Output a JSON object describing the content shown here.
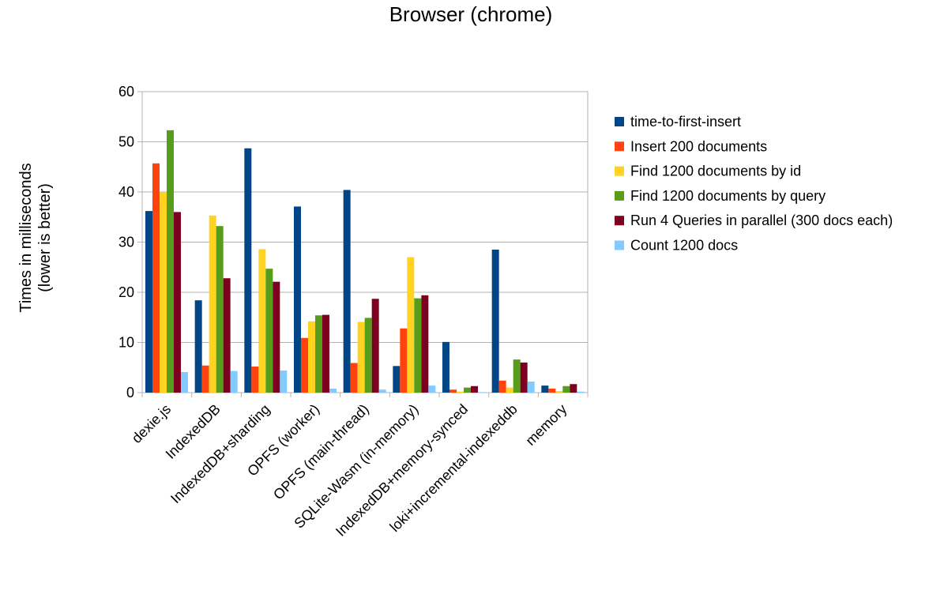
{
  "chart_data": {
    "type": "bar",
    "title": "Browser (chrome)",
    "xlabel": "",
    "ylabel": [
      "Times in milliseconds",
      "(lower is better)"
    ],
    "ylim": [
      0,
      60
    ],
    "yticks": [
      0,
      10,
      20,
      30,
      40,
      50,
      60
    ],
    "grid": true,
    "legend_position": "right",
    "categories": [
      "dexie.js",
      "IndexedDB",
      "IndexedDB+sharding",
      "OPFS (worker)",
      "OPFS (main-thread)",
      "SQLite-Wasm (in-memory)",
      "IndexedDB+memory-synced",
      "loki+incremental-indexeddb",
      "memory"
    ],
    "series": [
      {
        "name": "time-to-first-insert",
        "color": "#004586",
        "values": [
          36.2,
          18.4,
          48.7,
          37.1,
          40.4,
          5.3,
          10.1,
          28.5,
          1.4
        ]
      },
      {
        "name": "Insert 200 documents",
        "color": "#ff420e",
        "values": [
          45.7,
          5.4,
          5.2,
          10.9,
          5.9,
          12.8,
          0.6,
          2.4,
          0.8
        ]
      },
      {
        "name": "Find 1200 documents by id",
        "color": "#ffd320",
        "values": [
          40.0,
          35.3,
          28.6,
          14.2,
          14.1,
          27.0,
          0.2,
          1.0,
          0.3
        ]
      },
      {
        "name": "Find 1200 documents by query",
        "color": "#579d1c",
        "values": [
          52.3,
          33.2,
          24.7,
          15.4,
          14.9,
          18.8,
          1.0,
          6.6,
          1.3
        ]
      },
      {
        "name": "Run 4 Queries in parallel (300 docs each)",
        "color": "#7e0021",
        "values": [
          36.0,
          22.8,
          22.1,
          15.5,
          18.7,
          19.4,
          1.3,
          6.0,
          1.7
        ]
      },
      {
        "name": "Count 1200 docs",
        "color": "#83caff",
        "values": [
          4.1,
          4.3,
          4.4,
          0.8,
          0.6,
          1.4,
          0.1,
          2.2,
          0.2
        ]
      }
    ]
  }
}
